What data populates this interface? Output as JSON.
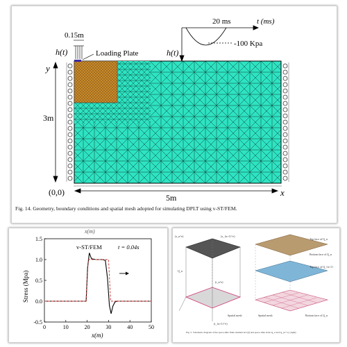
{
  "top_figure": {
    "caption": "Fig. 14.  Geometry, boundary conditions and spatial mesh adopted for simulating DPLT using v-ST/FEM.",
    "plate_width_label": "0.15m",
    "load_symbol": "h(t)",
    "loading_plate_label": "Loading Plate",
    "time_label": "20 ms",
    "time_axis_label": "t (ms)",
    "pressure_label": "-100 Kpa",
    "load_symbol_right": "h(t)",
    "y_axis_label": "y",
    "height_label": "3m",
    "origin_label": "(0,0)",
    "width_label": "5m",
    "x_axis_label": "x",
    "mesh_color": "#2ee3c2",
    "fine_mesh_color": "#c98a2a"
  },
  "chart_data": {
    "type": "line",
    "title": "v-ST/FEM",
    "annotation": "t = 0.04s",
    "top_label": "x(m)",
    "xlabel": "x(m)",
    "ylabel": "Stress (Mpa)",
    "xlim": [
      0,
      50
    ],
    "ylim": [
      -0.5,
      1.5
    ],
    "xticks": [
      "0",
      "10",
      "20",
      "30",
      "40",
      "50"
    ],
    "yticks": [
      "-0.5",
      "0.0",
      "0.5",
      "1.0",
      "1.5"
    ],
    "series": [
      {
        "color": "#000000",
        "x": [
          0,
          18,
          19.5,
          20.2,
          21,
          22,
          24,
          27,
          28.5,
          29.5,
          30.4,
          31.2,
          32,
          33,
          34,
          50
        ],
        "y": [
          0,
          0,
          0,
          0.8,
          1.16,
          1.02,
          1.0,
          1.0,
          0.98,
          0.55,
          -0.1,
          -0.3,
          -0.12,
          -0.02,
          0,
          0
        ]
      },
      {
        "color": "#d03030",
        "dashed": true,
        "x": [
          0,
          19.5,
          20.5,
          30,
          31,
          50
        ],
        "y": [
          0,
          0,
          1.0,
          1.0,
          0,
          0
        ]
      }
    ]
  },
  "right_figure": {
    "caption": "Fig. 5. Schematic diagram of the space-time finite element Ω^e(t) and space-time slabs Q_n and Q_{n+1} (right).",
    "left_labels": [
      "(x_n^e)",
      "(x_{n+1}^e)",
      "Q_n",
      "(t_n^e)",
      "(t_{n+1}^e)",
      "Spatial mesh"
    ],
    "right_labels": [
      "Top face of Q_n",
      "Bottom face of Q_n",
      "Top face of Q_{n+1}",
      "Spatial mesh",
      "Bottom face of Q_n"
    ]
  }
}
